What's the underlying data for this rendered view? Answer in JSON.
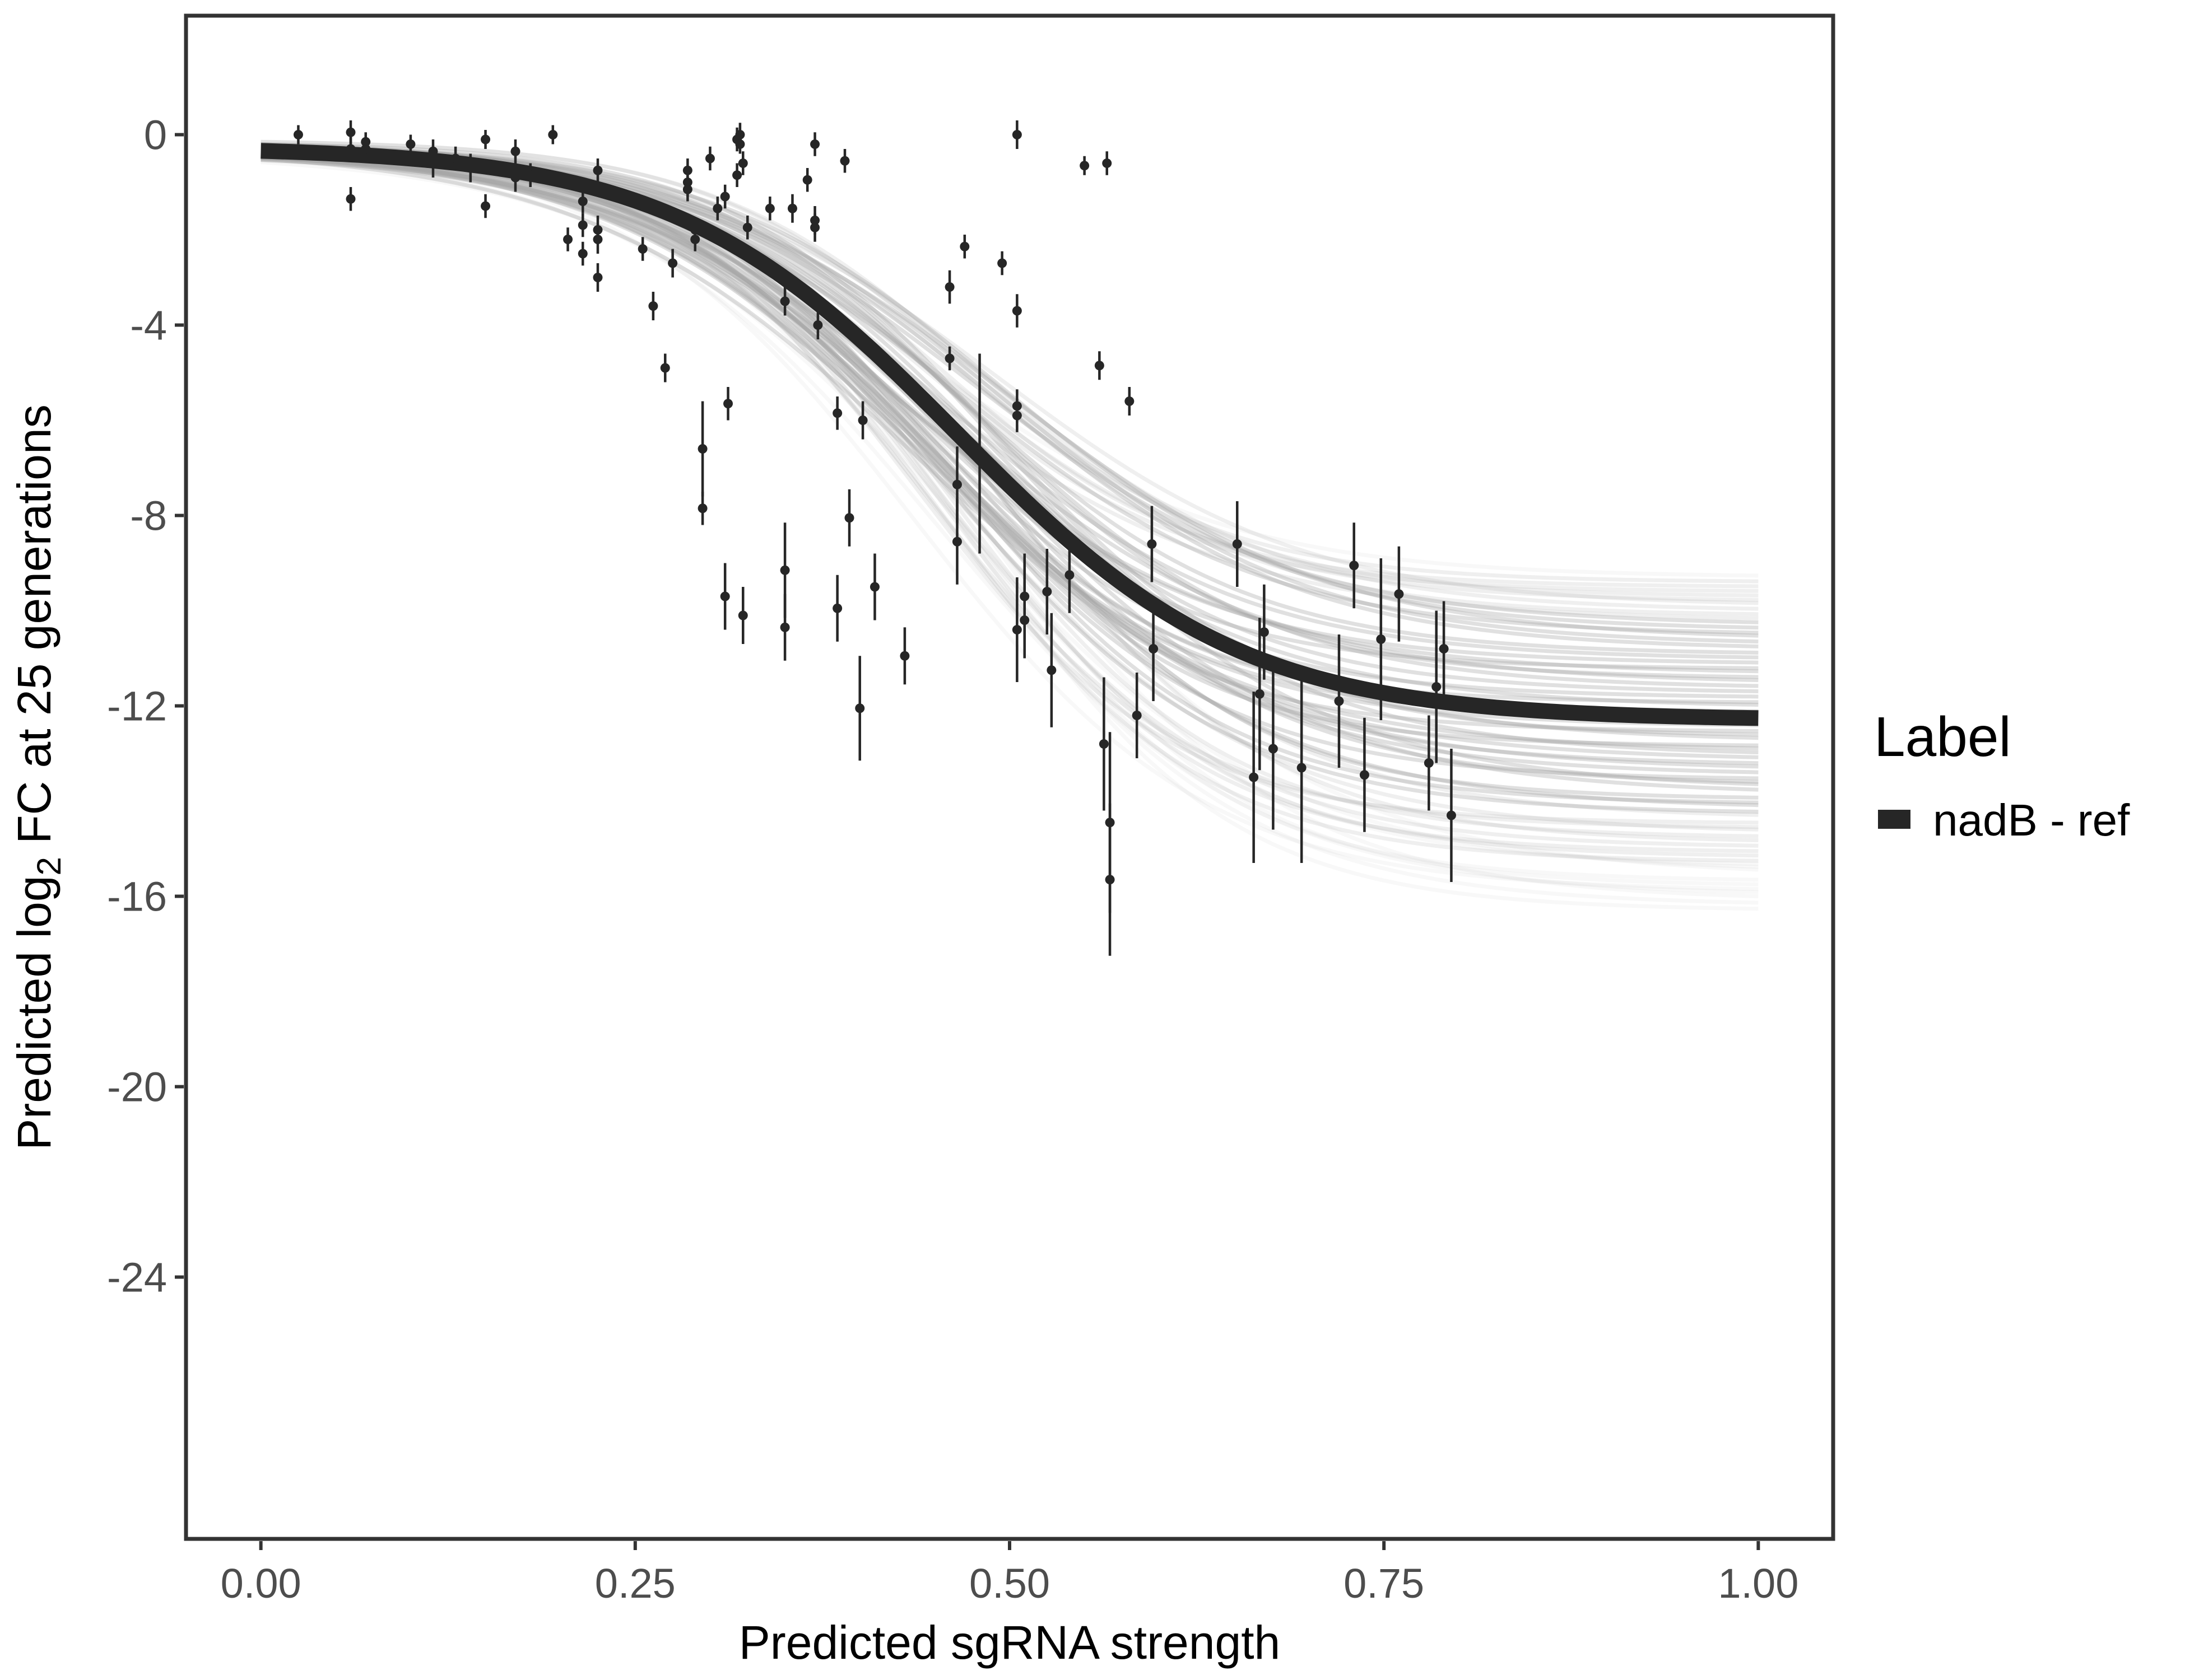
{
  "chart_data": {
    "type": "scatter",
    "xlabel": "Predicted sgRNA strength",
    "ylabel_parts": {
      "prefix": "Predicted  log",
      "subscript": "2",
      "suffix": " FC at 25 generations"
    },
    "xlim": [
      -0.05,
      1.05
    ],
    "ylim": [
      -29.5,
      2.5
    ],
    "x_ticks": [
      0.0,
      0.25,
      0.5,
      0.75,
      1.0
    ],
    "x_tick_labels": [
      "0.00",
      "0.25",
      "0.50",
      "0.75",
      "1.00"
    ],
    "y_ticks": [
      0,
      -4,
      -8,
      -12,
      -16,
      -20,
      -24
    ],
    "y_tick_labels": [
      "0",
      "-4",
      "-8",
      "-12",
      "-16",
      "-20",
      "-24"
    ],
    "grid": false,
    "legend": {
      "title": "Label",
      "entries": [
        {
          "label": "nadB - ref",
          "color": "#262626"
        }
      ],
      "position": "right"
    },
    "fit_curve": {
      "name": "nadB - ref",
      "model": "logistic",
      "params": {
        "low": -12.3,
        "high": -0.25,
        "midpoint": 0.465,
        "scale": 0.095
      },
      "color": "#262626"
    },
    "posterior_band": {
      "color": "#a6a6a6",
      "low_range": [
        -16.3,
        -9.3
      ],
      "midpoint_range": [
        0.43,
        0.5
      ],
      "scale_range": [
        0.085,
        0.11
      ],
      "draws": 70
    },
    "points": [
      {
        "x": 0.025,
        "y": 0.0,
        "err": 0.2
      },
      {
        "x": 0.06,
        "y": 0.05,
        "err": 0.25
      },
      {
        "x": 0.06,
        "y": -0.3,
        "err": 0.25
      },
      {
        "x": 0.06,
        "y": -1.35,
        "err": 0.25
      },
      {
        "x": 0.07,
        "y": -0.15,
        "err": 0.2
      },
      {
        "x": 0.07,
        "y": -0.3,
        "err": 0.2
      },
      {
        "x": 0.1,
        "y": -0.2,
        "err": 0.2
      },
      {
        "x": 0.115,
        "y": -0.35,
        "err": 0.25
      },
      {
        "x": 0.115,
        "y": -0.6,
        "err": 0.3
      },
      {
        "x": 0.13,
        "y": -0.5,
        "err": 0.25
      },
      {
        "x": 0.14,
        "y": -0.7,
        "err": 0.3
      },
      {
        "x": 0.15,
        "y": -0.1,
        "err": 0.2
      },
      {
        "x": 0.15,
        "y": -1.5,
        "err": 0.25
      },
      {
        "x": 0.17,
        "y": -0.35,
        "err": 0.25
      },
      {
        "x": 0.17,
        "y": -0.9,
        "err": 0.3
      },
      {
        "x": 0.18,
        "y": -0.85,
        "err": 0.25
      },
      {
        "x": 0.195,
        "y": 0.0,
        "err": 0.2
      },
      {
        "x": 0.205,
        "y": -2.2,
        "err": 0.25
      },
      {
        "x": 0.215,
        "y": -1.4,
        "err": 0.25
      },
      {
        "x": 0.215,
        "y": -1.9,
        "err": 0.25
      },
      {
        "x": 0.215,
        "y": -2.5,
        "err": 0.25
      },
      {
        "x": 0.225,
        "y": -0.75,
        "err": 0.25
      },
      {
        "x": 0.225,
        "y": -2.0,
        "err": 0.3
      },
      {
        "x": 0.225,
        "y": -2.2,
        "err": 0.3
      },
      {
        "x": 0.225,
        "y": -3.0,
        "err": 0.3
      },
      {
        "x": 0.255,
        "y": -2.4,
        "err": 0.25
      },
      {
        "x": 0.262,
        "y": -3.6,
        "err": 0.3
      },
      {
        "x": 0.27,
        "y": -4.9,
        "err": 0.3
      },
      {
        "x": 0.275,
        "y": -2.7,
        "err": 0.3
      },
      {
        "x": 0.285,
        "y": -0.75,
        "err": 0.25
      },
      {
        "x": 0.285,
        "y": -1.0,
        "err": 0.3
      },
      {
        "x": 0.285,
        "y": -1.15,
        "err": 0.25
      },
      {
        "x": 0.29,
        "y": -2.0,
        "err": 0.25
      },
      {
        "x": 0.29,
        "y": -2.2,
        "err": 0.25
      },
      {
        "x": 0.295,
        "y": -6.6,
        "err": 1.0
      },
      {
        "x": 0.295,
        "y": -7.85,
        "err": 0.35
      },
      {
        "x": 0.3,
        "y": -0.5,
        "err": 0.25
      },
      {
        "x": 0.305,
        "y": -1.55,
        "err": 0.25
      },
      {
        "x": 0.31,
        "y": -1.3,
        "err": 0.25
      },
      {
        "x": 0.31,
        "y": -9.7,
        "err": 0.7
      },
      {
        "x": 0.312,
        "y": -5.65,
        "err": 0.35
      },
      {
        "x": 0.318,
        "y": -0.1,
        "err": 0.25
      },
      {
        "x": 0.318,
        "y": -0.85,
        "err": 0.25
      },
      {
        "x": 0.32,
        "y": 0.0,
        "err": 0.25
      },
      {
        "x": 0.32,
        "y": -0.2,
        "err": 0.2
      },
      {
        "x": 0.322,
        "y": -0.6,
        "err": 0.25
      },
      {
        "x": 0.322,
        "y": -10.1,
        "err": 0.6
      },
      {
        "x": 0.325,
        "y": -1.95,
        "err": 0.25
      },
      {
        "x": 0.34,
        "y": -1.55,
        "err": 0.25
      },
      {
        "x": 0.35,
        "y": -3.5,
        "err": 0.3
      },
      {
        "x": 0.35,
        "y": -9.15,
        "err": 1.0
      },
      {
        "x": 0.35,
        "y": -10.35,
        "err": 0.7
      },
      {
        "x": 0.355,
        "y": -1.55,
        "err": 0.3
      },
      {
        "x": 0.365,
        "y": -0.95,
        "err": 0.25
      },
      {
        "x": 0.37,
        "y": -0.2,
        "err": 0.25
      },
      {
        "x": 0.37,
        "y": -1.8,
        "err": 0.3
      },
      {
        "x": 0.37,
        "y": -1.95,
        "err": 0.3
      },
      {
        "x": 0.372,
        "y": -4.0,
        "err": 0.3
      },
      {
        "x": 0.385,
        "y": -5.85,
        "err": 0.35
      },
      {
        "x": 0.385,
        "y": -9.95,
        "err": 0.7
      },
      {
        "x": 0.39,
        "y": -0.55,
        "err": 0.25
      },
      {
        "x": 0.393,
        "y": -8.05,
        "err": 0.6
      },
      {
        "x": 0.4,
        "y": -12.05,
        "err": 1.1
      },
      {
        "x": 0.402,
        "y": -6.0,
        "err": 0.4
      },
      {
        "x": 0.41,
        "y": -9.5,
        "err": 0.7
      },
      {
        "x": 0.43,
        "y": -10.95,
        "err": 0.6
      },
      {
        "x": 0.46,
        "y": -3.2,
        "err": 0.35
      },
      {
        "x": 0.46,
        "y": -4.7,
        "err": 0.25
      },
      {
        "x": 0.465,
        "y": -7.35,
        "err": 0.8
      },
      {
        "x": 0.465,
        "y": -8.55,
        "err": 0.9
      },
      {
        "x": 0.47,
        "y": -2.35,
        "err": 0.25
      },
      {
        "x": 0.48,
        "y": -6.7,
        "err": 2.1
      },
      {
        "x": 0.495,
        "y": -2.7,
        "err": 0.25
      },
      {
        "x": 0.505,
        "y": 0.0,
        "err": 0.3
      },
      {
        "x": 0.505,
        "y": -3.7,
        "err": 0.35
      },
      {
        "x": 0.505,
        "y": -5.7,
        "err": 0.35
      },
      {
        "x": 0.505,
        "y": -5.9,
        "err": 0.35
      },
      {
        "x": 0.505,
        "y": -10.4,
        "err": 1.1
      },
      {
        "x": 0.51,
        "y": -9.7,
        "err": 0.9
      },
      {
        "x": 0.51,
        "y": -10.2,
        "err": 0.8
      },
      {
        "x": 0.525,
        "y": -9.6,
        "err": 0.9
      },
      {
        "x": 0.528,
        "y": -11.25,
        "err": 1.2
      },
      {
        "x": 0.54,
        "y": -9.25,
        "err": 0.8
      },
      {
        "x": 0.55,
        "y": -0.65,
        "err": 0.2
      },
      {
        "x": 0.56,
        "y": -4.85,
        "err": 0.3
      },
      {
        "x": 0.563,
        "y": -12.8,
        "err": 1.4
      },
      {
        "x": 0.565,
        "y": -0.6,
        "err": 0.25
      },
      {
        "x": 0.567,
        "y": -14.45,
        "err": 1.9
      },
      {
        "x": 0.567,
        "y": -15.65,
        "err": 1.6
      },
      {
        "x": 0.58,
        "y": -5.6,
        "err": 0.3
      },
      {
        "x": 0.585,
        "y": -12.2,
        "err": 0.9
      },
      {
        "x": 0.595,
        "y": -8.6,
        "err": 0.8
      },
      {
        "x": 0.596,
        "y": -10.8,
        "err": 1.1
      },
      {
        "x": 0.652,
        "y": -8.6,
        "err": 0.9
      },
      {
        "x": 0.663,
        "y": -13.5,
        "err": 1.8
      },
      {
        "x": 0.667,
        "y": -11.75,
        "err": 1.6
      },
      {
        "x": 0.67,
        "y": -10.45,
        "err": 1.0
      },
      {
        "x": 0.676,
        "y": -12.9,
        "err": 1.7
      },
      {
        "x": 0.695,
        "y": -13.3,
        "err": 2.0
      },
      {
        "x": 0.72,
        "y": -11.9,
        "err": 1.4
      },
      {
        "x": 0.73,
        "y": -9.05,
        "err": 0.9
      },
      {
        "x": 0.737,
        "y": -13.45,
        "err": 1.2
      },
      {
        "x": 0.748,
        "y": -10.6,
        "err": 1.7
      },
      {
        "x": 0.76,
        "y": -9.65,
        "err": 1.0
      },
      {
        "x": 0.78,
        "y": -13.2,
        "err": 1.0
      },
      {
        "x": 0.785,
        "y": -11.6,
        "err": 1.6
      },
      {
        "x": 0.79,
        "y": -10.8,
        "err": 1.0
      },
      {
        "x": 0.795,
        "y": -14.3,
        "err": 1.4
      }
    ]
  }
}
